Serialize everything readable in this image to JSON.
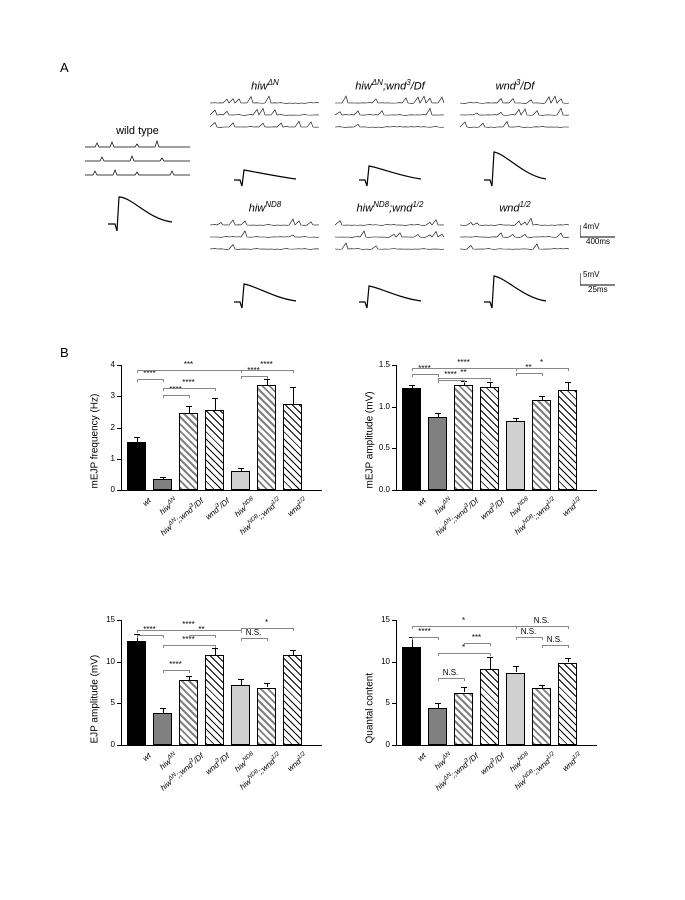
{
  "panelA": {
    "label": "A",
    "wild_type_label": "wild type",
    "genotypes_row1": [
      "hiw<sup>ΔN</sup>",
      "hiw<sup>ΔN</sup>;wnd<sup>3</sup>/Df",
      "wnd<sup>3</sup>/Df"
    ],
    "genotypes_row2": [
      "hiw<sup>ND8</sup>",
      "hiw<sup>ND8</sup>;wnd<sup>1/2</sup>",
      "wnd<sup>1/2</sup>"
    ],
    "scale_mejp": {
      "y": "4mV",
      "x": "400ms"
    },
    "scale_ejp": {
      "y": "5mV",
      "x": "25ms"
    }
  },
  "panelB": {
    "label": "B",
    "x_labels": [
      "wt",
      "hiw<sup>ΔN</sup>",
      "hiw<sup>ΔN</sup>;;wnd<sup>3</sup>/Df",
      "wnd<sup>3</sup>/Df",
      "hiw<sup>ND8</sup>",
      "hiw<sup>ND8</sup>;;wnd<sup>1/2</sup>",
      "wnd<sup>1/2</sup>"
    ],
    "colors": {
      "wt": "#000000",
      "hiw_dn": "#808080",
      "hiw_dn_wnd": "pattern-gray",
      "wnd3": "pattern-white",
      "hiw_nd8": "#d0d0d0",
      "hiw_nd8_wnd": "pattern-gray",
      "wnd12": "pattern-white"
    },
    "charts": {
      "mejp_freq": {
        "y_label": "mEJP frequency (Hz)",
        "y_max": 4,
        "y_step": 1,
        "values": [
          1.55,
          0.35,
          2.45,
          2.55,
          0.6,
          3.35,
          2.75
        ],
        "errors": [
          0.15,
          0.08,
          0.25,
          0.4,
          0.1,
          0.2,
          0.55
        ],
        "sig": [
          {
            "from": 0,
            "to": 1,
            "label": "****",
            "y": 3.55
          },
          {
            "from": 0,
            "to": 4,
            "label": "***",
            "y": 3.85
          },
          {
            "from": 1,
            "to": 2,
            "label": "****",
            "y": 3.05
          },
          {
            "from": 1,
            "to": 3,
            "label": "****",
            "y": 3.25
          },
          {
            "from": 4,
            "to": 5,
            "label": "****",
            "y": 3.65
          },
          {
            "from": 4,
            "to": 6,
            "label": "****",
            "y": 3.85
          }
        ]
      },
      "mejp_amp": {
        "y_label": "mEJP amplitude (mV)",
        "y_max": 1.5,
        "y_step": 0.5,
        "values": [
          1.22,
          0.88,
          1.26,
          1.24,
          0.83,
          1.08,
          1.2
        ],
        "errors": [
          0.04,
          0.04,
          0.05,
          0.06,
          0.03,
          0.05,
          0.1
        ],
        "sig": [
          {
            "from": 0,
            "to": 1,
            "label": "****",
            "y": 1.39
          },
          {
            "from": 0,
            "to": 4,
            "label": "****",
            "y": 1.47
          },
          {
            "from": 1,
            "to": 2,
            "label": "****",
            "y": 1.32
          },
          {
            "from": 1,
            "to": 3,
            "label": "**",
            "y": 1.35
          },
          {
            "from": 4,
            "to": 5,
            "label": "**",
            "y": 1.4
          },
          {
            "from": 4,
            "to": 6,
            "label": "*",
            "y": 1.47
          }
        ]
      },
      "ejp_amp": {
        "y_label": "EJP amplitude (mV)",
        "y_max": 15,
        "y_step": 5,
        "values": [
          12.5,
          3.8,
          7.8,
          10.8,
          7.2,
          6.9,
          10.8
        ],
        "errors": [
          0.8,
          0.6,
          0.5,
          0.9,
          0.7,
          0.5,
          0.6
        ],
        "sig": [
          {
            "from": 0,
            "to": 1,
            "label": "****",
            "y": 13.2
          },
          {
            "from": 0,
            "to": 4,
            "label": "****",
            "y": 13.8
          },
          {
            "from": 1,
            "to": 2,
            "label": "****",
            "y": 9.0
          },
          {
            "from": 1,
            "to": 3,
            "label": "****",
            "y": 12.0
          },
          {
            "from": 2,
            "to": 3,
            "label": "**",
            "y": 13.2
          },
          {
            "from": 4,
            "to": 5,
            "label": "N.S.",
            "y": 12.8
          },
          {
            "from": 4,
            "to": 6,
            "label": "*",
            "y": 14.0
          }
        ]
      },
      "quantal": {
        "y_label": "Quantal content",
        "y_max": 15,
        "y_step": 5,
        "values": [
          11.8,
          4.4,
          6.3,
          9.1,
          8.7,
          6.8,
          9.9
        ],
        "errors": [
          1.2,
          0.7,
          0.7,
          1.5,
          0.8,
          0.4,
          0.5
        ],
        "sig": [
          {
            "from": 0,
            "to": 1,
            "label": "****",
            "y": 13.0
          },
          {
            "from": 0,
            "to": 4,
            "label": "*",
            "y": 14.3
          },
          {
            "from": 1,
            "to": 2,
            "label": "N.S.",
            "y": 8.0
          },
          {
            "from": 1,
            "to": 3,
            "label": "*",
            "y": 11.0
          },
          {
            "from": 2,
            "to": 3,
            "label": "***",
            "y": 12.2
          },
          {
            "from": 4,
            "to": 5,
            "label": "N.S.",
            "y": 13.0
          },
          {
            "from": 4,
            "to": 6,
            "label": "N.S.",
            "y": 14.3
          },
          {
            "from": 5,
            "to": 6,
            "label": "N.S.",
            "y": 12.0
          }
        ]
      }
    }
  }
}
